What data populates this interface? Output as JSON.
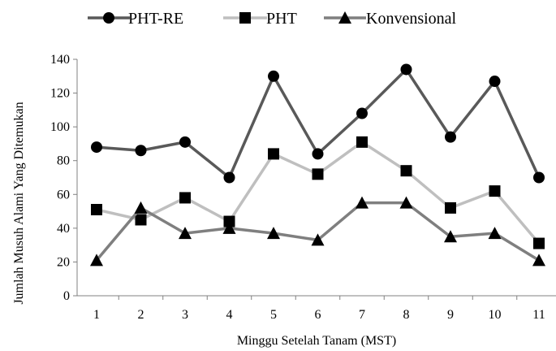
{
  "chart_data": {
    "type": "line",
    "x": [
      1,
      2,
      3,
      4,
      5,
      6,
      7,
      8,
      9,
      10,
      11
    ],
    "x_tick_labels": [
      "1",
      "2",
      "3",
      "4",
      "5",
      "6",
      "7",
      "8",
      "9",
      "10",
      "11"
    ],
    "xlabel": "Minggu Setelah Tanam (MST)",
    "ylabel": "Jumlah Musuh Alami Yang Ditemukan",
    "ylim": [
      0,
      140
    ],
    "y_ticks": [
      0,
      20,
      40,
      60,
      80,
      100,
      120,
      140
    ],
    "grid": false,
    "legend_position": "top",
    "series": [
      {
        "name": "PHT-RE",
        "marker": "circle",
        "line_color": "#595959",
        "marker_color": "#000000",
        "values": [
          88,
          86,
          91,
          70,
          130,
          84,
          108,
          134,
          94,
          127,
          70
        ]
      },
      {
        "name": "PHT",
        "marker": "square",
        "line_color": "#bfbfbf",
        "marker_color": "#000000",
        "values": [
          51,
          45,
          58,
          44,
          84,
          72,
          91,
          74,
          52,
          62,
          31
        ]
      },
      {
        "name": "Konvensional",
        "marker": "triangle",
        "line_color": "#7f7f7f",
        "marker_color": "#000000",
        "values": [
          21,
          52,
          37,
          40,
          37,
          33,
          55,
          55,
          35,
          37,
          21
        ]
      }
    ]
  }
}
